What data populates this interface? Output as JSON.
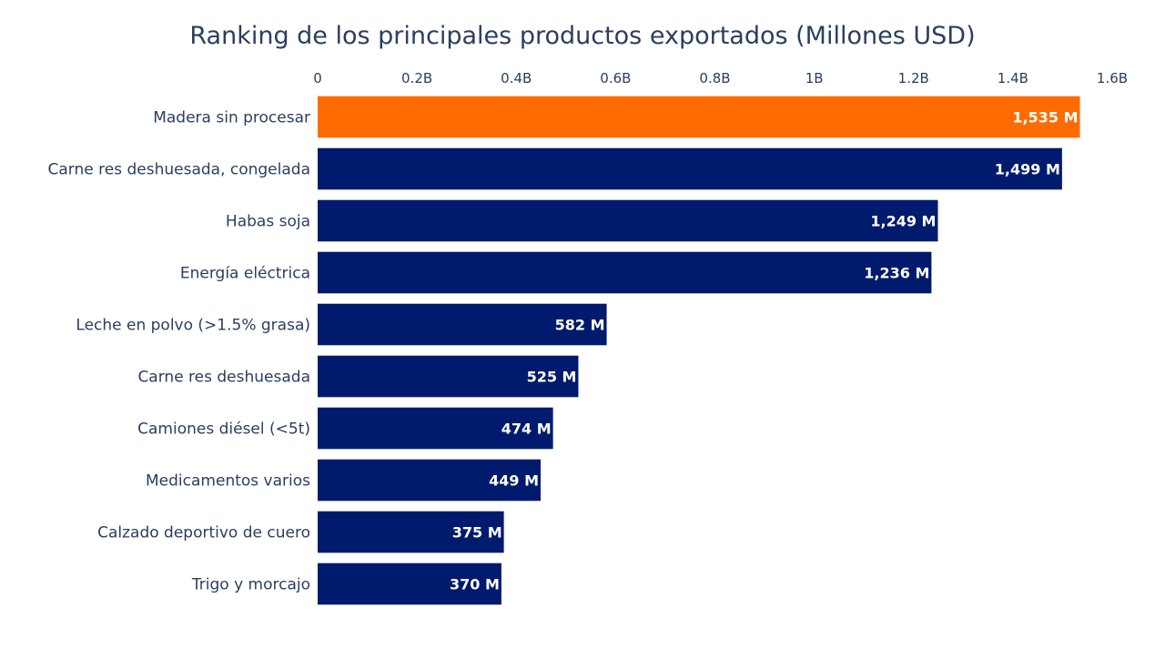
{
  "chart_data": {
    "type": "bar",
    "orientation": "horizontal",
    "title": "Ranking de los principales productos exportados (Millones USD)",
    "xlabel": "",
    "ylabel": "",
    "xlim": [
      0,
      1600
    ],
    "x_units": "millones USD",
    "x_ticks": [
      {
        "value": 0,
        "label": "0"
      },
      {
        "value": 200,
        "label": "0.2B"
      },
      {
        "value": 400,
        "label": "0.4B"
      },
      {
        "value": 600,
        "label": "0.6B"
      },
      {
        "value": 800,
        "label": "0.8B"
      },
      {
        "value": 1000,
        "label": "1B"
      },
      {
        "value": 1200,
        "label": "1.2B"
      },
      {
        "value": 1400,
        "label": "1.4B"
      },
      {
        "value": 1600,
        "label": "1.6B"
      }
    ],
    "x_axis_position": "top",
    "grid": false,
    "categories": [
      "Madera sin procesar",
      "Carne res deshuesada, congelada",
      "Habas soja",
      "Energía eléctrica",
      "Leche en polvo (>1.5% grasa)",
      "Carne res deshuesada",
      "Camiones diésel (<5t)",
      "Medicamentos varios",
      "Calzado deportivo de cuero",
      "Trigo y morcajo"
    ],
    "values": [
      1535,
      1499,
      1249,
      1236,
      582,
      525,
      474,
      449,
      375,
      370
    ],
    "value_labels": [
      "1,535 M",
      "1,499 M",
      "1,249 M",
      "1,236 M",
      "582 M",
      "525 M",
      "474 M",
      "449 M",
      "375 M",
      "370 M"
    ],
    "highlight_index": 0,
    "colors": {
      "highlight": "#ff6b00",
      "default": "#001a6e",
      "text": "#2a3f5f",
      "bar_label": "#ffffff"
    }
  }
}
